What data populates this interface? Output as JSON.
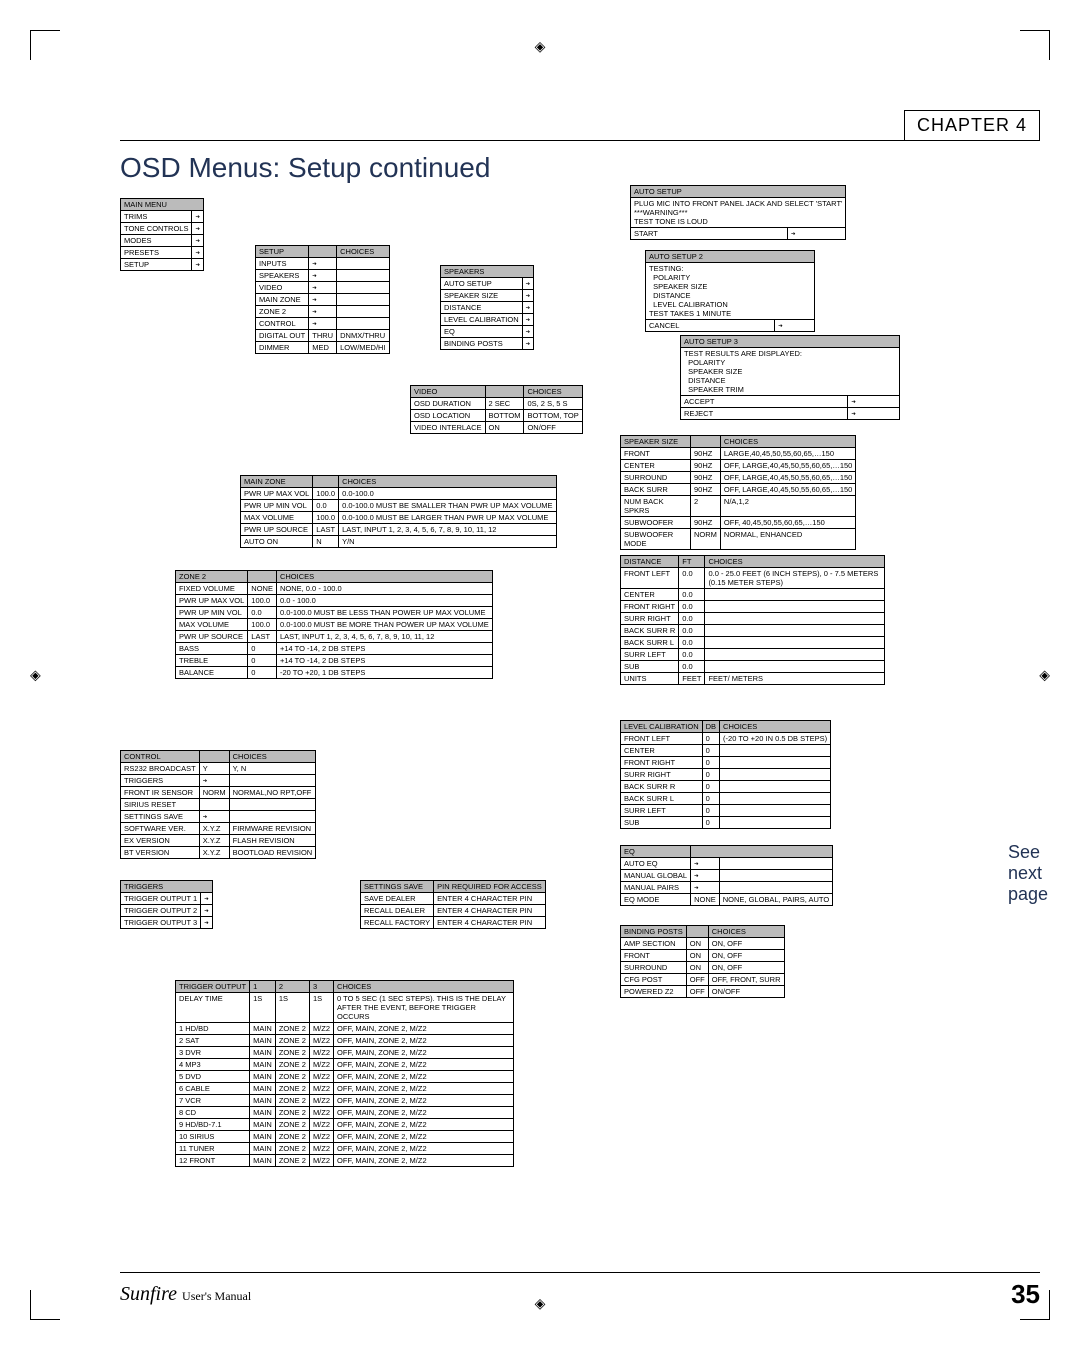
{
  "chapter": "CHAPTER 4",
  "title": "OSD Menus: Setup continued",
  "footer_brand": "Sunfire",
  "footer_sub": "User's Manual",
  "page_number": "35",
  "side_note": [
    "See",
    "next",
    "page"
  ],
  "mainMenu": {
    "header": "MAIN MENU",
    "rows": [
      [
        "TRIMS",
        "➔"
      ],
      [
        "TONE CONTROLS",
        "➔"
      ],
      [
        "MODES",
        "➔"
      ],
      [
        "PRESETS",
        "➔"
      ],
      [
        "SETUP",
        "➔"
      ]
    ]
  },
  "setup": {
    "headers": [
      "SETUP",
      "",
      "CHOICES"
    ],
    "rows": [
      [
        "INPUTS",
        "➔",
        ""
      ],
      [
        "SPEAKERS",
        "➔",
        ""
      ],
      [
        "VIDEO",
        "➔",
        ""
      ],
      [
        "MAIN ZONE",
        "➔",
        ""
      ],
      [
        "ZONE 2",
        "➔",
        ""
      ],
      [
        "CONTROL",
        "➔",
        ""
      ],
      [
        "DIGITAL OUT",
        "THRU",
        "DNMX/THRU"
      ],
      [
        "DIMMER",
        "MED",
        "LOW/MED/HI"
      ]
    ]
  },
  "speakers": {
    "header": "SPEAKERS",
    "rows": [
      [
        "AUTO SETUP",
        "➔"
      ],
      [
        "SPEAKER SIZE",
        "➔"
      ],
      [
        "DISTANCE",
        "➔"
      ],
      [
        "LEVEL CALIBRATION",
        "➔"
      ],
      [
        "EQ",
        "➔"
      ],
      [
        "BINDING POSTS",
        "➔"
      ]
    ]
  },
  "video": {
    "headers": [
      "VIDEO",
      "",
      "CHOICES"
    ],
    "rows": [
      [
        "OSD DURATION",
        "2 SEC",
        "0S, 2 S, 5 S"
      ],
      [
        "OSD LOCATION",
        "BOTTOM",
        "BOTTOM, TOP"
      ],
      [
        "VIDEO INTERLACE",
        "ON",
        "ON/OFF"
      ]
    ]
  },
  "mainZone": {
    "headers": [
      "MAIN ZONE",
      "",
      "CHOICES"
    ],
    "rows": [
      [
        "PWR UP MAX VOL",
        "100.0",
        "0.0-100.0"
      ],
      [
        "PWR UP MIN VOL",
        "0.0",
        "0.0-100.0 MUST BE SMALLER THAN PWR UP MAX VOLUME"
      ],
      [
        "MAX VOLUME",
        "100.0",
        "0.0-100.0 MUST BE LARGER THAN PWR UP MAX VOLUME"
      ],
      [
        "PWR UP SOURCE",
        "LAST",
        "LAST, INPUT 1, 2, 3, 4, 5, 6, 7, 8, 9, 10, 11, 12"
      ],
      [
        "AUTO ON",
        "N",
        "Y/N"
      ]
    ]
  },
  "zone2": {
    "headers": [
      "ZONE 2",
      "",
      "CHOICES"
    ],
    "rows": [
      [
        "FIXED VOLUME",
        "NONE",
        "NONE, 0.0 - 100.0"
      ],
      [
        "PWR UP MAX VOL",
        "100.0",
        "0.0 - 100.0"
      ],
      [
        "PWR UP MIN VOL",
        "0.0",
        "0.0-100.0 MUST BE LESS THAN POWER UP MAX VOLUME"
      ],
      [
        "MAX VOLUME",
        "100.0",
        "0.0-100.0 MUST BE MORE THAN POWER UP MAX VOLUME"
      ],
      [
        "PWR UP SOURCE",
        "LAST",
        "LAST, INPUT 1, 2, 3, 4, 5, 6, 7, 8, 9, 10, 11, 12"
      ],
      [
        "BASS",
        "0",
        "+14 TO -14, 2 DB STEPS"
      ],
      [
        "TREBLE",
        "0",
        "+14 TO -14, 2 DB STEPS"
      ],
      [
        "BALANCE",
        "0",
        "-20 TO +20, 1 DB STEPS"
      ]
    ]
  },
  "control": {
    "headers": [
      "CONTROL",
      "",
      "CHOICES"
    ],
    "rows": [
      [
        "RS232 BROADCAST",
        "Y",
        "Y, N"
      ],
      [
        "TRIGGERS",
        "➔",
        ""
      ],
      [
        "FRONT IR SENSOR",
        "NORM",
        "NORMAL,NO RPT,OFF"
      ],
      [
        "SIRIUS RESET",
        "",
        ""
      ],
      [
        "SETTINGS SAVE",
        "➔",
        ""
      ],
      [
        "SOFTWARE VER.",
        "X.Y.Z",
        "FIRMWARE REVISION"
      ],
      [
        "EX VERSION",
        "X.Y.Z",
        "FLASH REVISION"
      ],
      [
        "BT VERSION",
        "X.Y.Z",
        "BOOTLOAD REVISION"
      ]
    ]
  },
  "triggers": {
    "header": "TRIGGERS",
    "rows": [
      [
        "TRIGGER OUTPUT 1",
        "➔"
      ],
      [
        "TRIGGER OUTPUT 2",
        "➔"
      ],
      [
        "TRIGGER OUTPUT 3",
        "➔"
      ]
    ]
  },
  "settingsSave": {
    "rows": [
      [
        "SETTINGS SAVE",
        "PIN REQUIRED FOR ACCESS"
      ],
      [
        "SAVE DEALER",
        "ENTER 4 CHARACTER PIN"
      ],
      [
        "RECALL DEALER",
        "ENTER 4 CHARACTER PIN"
      ],
      [
        "RECALL FACTORY",
        "ENTER 4 CHARACTER PIN"
      ]
    ]
  },
  "triggerOutput": {
    "headers": [
      "TRIGGER OUTPUT",
      "1",
      "2",
      "3",
      "CHOICES"
    ],
    "rows": [
      [
        "DELAY TIME",
        "1S",
        "1S",
        "1S",
        "0 TO 5 SEC (1 SEC STEPS). THIS IS THE DELAY AFTER THE EVENT, BEFORE TRIGGER OCCURS"
      ],
      [
        "1 HD/BD",
        "MAIN",
        "ZONE 2",
        "M/Z2",
        "OFF, MAIN, ZONE 2, M/Z2"
      ],
      [
        "2 SAT",
        "MAIN",
        "ZONE 2",
        "M/Z2",
        "OFF, MAIN, ZONE 2, M/Z2"
      ],
      [
        "3 DVR",
        "MAIN",
        "ZONE 2",
        "M/Z2",
        "OFF, MAIN, ZONE 2, M/Z2"
      ],
      [
        "4 MP3",
        "MAIN",
        "ZONE 2",
        "M/Z2",
        "OFF, MAIN, ZONE 2, M/Z2"
      ],
      [
        "5 DVD",
        "MAIN",
        "ZONE 2",
        "M/Z2",
        "OFF, MAIN, ZONE 2, M/Z2"
      ],
      [
        "6 CABLE",
        "MAIN",
        "ZONE 2",
        "M/Z2",
        "OFF, MAIN, ZONE 2, M/Z2"
      ],
      [
        "7 VCR",
        "MAIN",
        "ZONE 2",
        "M/Z2",
        "OFF, MAIN, ZONE 2, M/Z2"
      ],
      [
        "8 CD",
        "MAIN",
        "ZONE 2",
        "M/Z2",
        "OFF, MAIN, ZONE 2, M/Z2"
      ],
      [
        "9 HD/BD-7.1",
        "MAIN",
        "ZONE 2",
        "M/Z2",
        "OFF, MAIN, ZONE 2, M/Z2"
      ],
      [
        "10 SIRIUS",
        "MAIN",
        "ZONE 2",
        "M/Z2",
        "OFF, MAIN, ZONE 2, M/Z2"
      ],
      [
        "11 TUNER",
        "MAIN",
        "ZONE 2",
        "M/Z2",
        "OFF, MAIN, ZONE 2, M/Z2"
      ],
      [
        "12 FRONT",
        "MAIN",
        "ZONE 2",
        "M/Z2",
        "OFF, MAIN, ZONE 2, M/Z2"
      ]
    ]
  },
  "autoSetup": {
    "header": "AUTO SETUP",
    "body": "PLUG MIC INTO FRONT PANEL JACK AND SELECT 'START'\n***WARNING***\nTEST TONE IS LOUD",
    "rows": [
      [
        "START",
        "➔"
      ]
    ]
  },
  "autoSetup2": {
    "header": "AUTO SETUP 2",
    "body": "TESTING:\n  POLARITY\n  SPEAKER SIZE\n  DISTANCE\n  LEVEL CALIBRATION\nTEST TAKES 1 MINUTE",
    "rows": [
      [
        "CANCEL",
        "➔"
      ]
    ]
  },
  "autoSetup3": {
    "header": "AUTO SETUP 3",
    "body": "TEST RESULTS ARE DISPLAYED:\n  POLARITY\n  SPEAKER SIZE\n  DISTANCE\n  SPEAKER TRIM",
    "rows": [
      [
        "ACCEPT",
        "➔"
      ],
      [
        "REJECT",
        "➔"
      ]
    ]
  },
  "speakerSize": {
    "headers": [
      "SPEAKER SIZE",
      "",
      "CHOICES"
    ],
    "rows": [
      [
        "FRONT",
        "90HZ",
        "LARGE,40,45,50,55,60,65,…150"
      ],
      [
        "CENTER",
        "90HZ",
        "OFF, LARGE,40,45,50,55,60,65,…150"
      ],
      [
        "SURROUND",
        "90HZ",
        "OFF, LARGE,40,45,50,55,60,65,…150"
      ],
      [
        "BACK SURR",
        "90HZ",
        "OFF, LARGE,40,45,50,55,60,65,…150"
      ],
      [
        "NUM BACK SPKRS",
        "2",
        "N/A,1,2"
      ],
      [
        "SUBWOOFER",
        "90HZ",
        "OFF, 40,45,50,55,60,65,…150"
      ],
      [
        "SUBWOOFER MODE",
        "NORM",
        "NORMAL, ENHANCED"
      ]
    ]
  },
  "distance": {
    "headers": [
      "DISTANCE",
      "FT",
      "CHOICES"
    ],
    "rows": [
      [
        "FRONT LEFT",
        "0.0",
        "0.0 - 25.0 FEET (6 INCH STEPS), 0 - 7.5 METERS (0.15 METER STEPS)"
      ],
      [
        "CENTER",
        "0.0",
        ""
      ],
      [
        "FRONT RIGHT",
        "0.0",
        ""
      ],
      [
        "SURR RIGHT",
        "0.0",
        ""
      ],
      [
        "BACK SURR R",
        "0.0",
        ""
      ],
      [
        "BACK SURR L",
        "0.0",
        ""
      ],
      [
        "SURR LEFT",
        "0.0",
        ""
      ],
      [
        "SUB",
        "0.0",
        ""
      ],
      [
        "UNITS",
        "FEET",
        "FEET/ METERS"
      ]
    ]
  },
  "levelCal": {
    "headers": [
      "LEVEL CALIBRATION",
      "DB",
      "CHOICES"
    ],
    "rows": [
      [
        "FRONT LEFT",
        "0",
        "(-20 TO +20 IN 0.5 DB STEPS)"
      ],
      [
        "CENTER",
        "0",
        ""
      ],
      [
        "FRONT RIGHT",
        "0",
        ""
      ],
      [
        "SURR RIGHT",
        "0",
        ""
      ],
      [
        "BACK SURR R",
        "0",
        ""
      ],
      [
        "BACK SURR L",
        "0",
        ""
      ],
      [
        "SURR LEFT",
        "0",
        ""
      ],
      [
        "SUB",
        "0",
        ""
      ]
    ]
  },
  "eq": {
    "header": "EQ",
    "rows": [
      [
        "AUTO EQ",
        "➔",
        ""
      ],
      [
        "MANUAL GLOBAL",
        "➔",
        ""
      ],
      [
        "MANUAL PAIRS",
        "➔",
        ""
      ],
      [
        "EQ MODE",
        "NONE",
        "NONE, GLOBAL, PAIRS, AUTO"
      ]
    ]
  },
  "bindingPosts": {
    "headers": [
      "BINDING POSTS",
      "",
      "CHOICES"
    ],
    "rows": [
      [
        "AMP SECTION",
        "ON",
        "ON, OFF"
      ],
      [
        "FRONT",
        "ON",
        "ON, OFF"
      ],
      [
        "SURROUND",
        "ON",
        "ON, OFF"
      ],
      [
        "CFG POST",
        "OFF",
        "OFF, FRONT, SURR"
      ],
      [
        "POWERED Z2",
        "OFF",
        "ON/OFF"
      ]
    ]
  }
}
